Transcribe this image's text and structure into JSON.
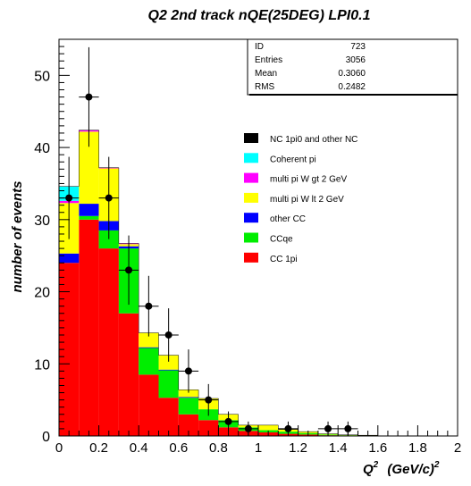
{
  "chart_data": {
    "type": "bar",
    "title": "Q2 2nd track nQE(25DEG) LPI0.1",
    "ylabel": "number of events",
    "xlabel_base": "Q",
    "xlabel_sup": "2",
    "xlabel_units": "(GeV/c)",
    "xlabel_units_sup": "2",
    "xlim": [
      0,
      2
    ],
    "ylim": [
      0,
      55
    ],
    "x_ticks": [
      0,
      0.2,
      0.4,
      0.6,
      0.8,
      1,
      1.2,
      1.4,
      1.6,
      1.8,
      2
    ],
    "x_tick_labels": [
      "0",
      "0.2",
      "0.4",
      "0.6",
      "0.8",
      "1",
      "1.2",
      "1.4",
      "1.6",
      "1.8",
      "2"
    ],
    "y_ticks": [
      0,
      10,
      20,
      30,
      40,
      50
    ],
    "y_tick_labels": [
      "0",
      "10",
      "20",
      "30",
      "40",
      "50"
    ],
    "bin_edges": [
      0,
      0.1,
      0.2,
      0.3,
      0.4,
      0.5,
      0.6,
      0.7,
      0.8,
      0.9,
      1.0,
      1.1,
      1.2,
      1.3,
      1.4,
      1.5,
      1.6,
      1.7,
      1.8,
      1.9,
      2.0
    ],
    "stack_order": [
      "CC 1pi",
      "CCqe",
      "other CC",
      "multi pi W lt 2 GeV",
      "multi pi W gt 2 GeV",
      "Coherent pi",
      "NC 1pi0 and other NC"
    ],
    "series": [
      {
        "name": "CC 1pi",
        "color": "#ff0000",
        "values": [
          24,
          30,
          26,
          17,
          8.5,
          5.3,
          3,
          2.2,
          1.2,
          0.7,
          0.5,
          0.3,
          0.2,
          0.1,
          0.05,
          0.05,
          0,
          0,
          0,
          0
        ]
      },
      {
        "name": "CCqe",
        "color": "#00ee00",
        "values": [
          0,
          0.5,
          2.5,
          9,
          3.7,
          3.8,
          2.3,
          1.5,
          1,
          0.5,
          0.3,
          0.3,
          0.2,
          0.1,
          0.05,
          0,
          0,
          0,
          0,
          0
        ]
      },
      {
        "name": "other CC",
        "color": "#0000ff",
        "values": [
          1.3,
          1.7,
          1.3,
          0.3,
          0.1,
          0.1,
          0.1,
          0,
          0,
          0,
          0,
          0,
          0,
          0,
          0,
          0,
          0,
          0,
          0,
          0
        ]
      },
      {
        "name": "multi pi W lt 2 GeV",
        "color": "#ffff00",
        "values": [
          7,
          10,
          7.3,
          0.3,
          2,
          2,
          1,
          1.5,
          0.8,
          0.3,
          0.7,
          0.3,
          0.2,
          0.1,
          0.05,
          0.05,
          0,
          0,
          0,
          0
        ]
      },
      {
        "name": "multi pi W gt 2 GeV",
        "color": "#ff00ff",
        "values": [
          0.3,
          0.2,
          0.1,
          0.1,
          0,
          0,
          0,
          0,
          0,
          0,
          0,
          0,
          0,
          0,
          0,
          0,
          0,
          0,
          0,
          0
        ]
      },
      {
        "name": "Coherent pi",
        "color": "#00ffff",
        "values": [
          2,
          0,
          0,
          0,
          0,
          0,
          0,
          0,
          0,
          0,
          0,
          0,
          0,
          0,
          0,
          0,
          0,
          0,
          0,
          0
        ]
      },
      {
        "name": "NC 1pi0 and other NC",
        "color": "#000000",
        "values": [
          0,
          0,
          0,
          0,
          0,
          0,
          0,
          0,
          0,
          0,
          0,
          0,
          0,
          0,
          0,
          0,
          0,
          0,
          0,
          0
        ]
      }
    ],
    "data_points": {
      "x": [
        0.05,
        0.15,
        0.25,
        0.35,
        0.45,
        0.55,
        0.65,
        0.75,
        0.85,
        0.95,
        1.15,
        1.35,
        1.45
      ],
      "y": [
        33,
        47,
        33,
        23,
        18,
        14,
        9,
        5,
        2,
        1,
        1,
        1,
        1
      ],
      "err": [
        5.7,
        6.9,
        5.7,
        4.8,
        4.2,
        3.7,
        3.0,
        2.2,
        1.4,
        1.0,
        1.0,
        1.0,
        1.0
      ]
    },
    "stats_box": [
      {
        "label": "ID",
        "value": "723"
      },
      {
        "label": "Entries",
        "value": "3056"
      },
      {
        "label": "Mean",
        "value": "0.3060"
      },
      {
        "label": "RMS",
        "value": "0.2482"
      }
    ],
    "legend_order": [
      "NC 1pi0 and other NC",
      "Coherent pi",
      "multi pi W gt 2 GeV",
      "multi pi W lt 2 GeV",
      "other CC",
      "CCqe",
      "CC 1pi"
    ]
  }
}
